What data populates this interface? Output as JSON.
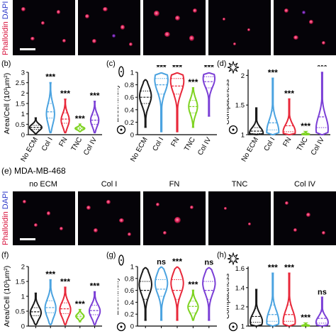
{
  "staining": {
    "phalloidin": "Phalloidin",
    "dapi": "DAPI"
  },
  "colors": {
    "no_ecm": "#1a1a1a",
    "col_i": "#4ba3e0",
    "fn": "#e8283a",
    "tnc": "#7ed321",
    "col_iv": "#7b3fd6",
    "phalloidin": "#d8123c",
    "dapi": "#2a36c8"
  },
  "section_e": {
    "tag": "(e)",
    "cell_line": "MDA-MB-468",
    "conditions": [
      "no ECM",
      "Col I",
      "FN",
      "TNC",
      "Col IV"
    ]
  },
  "panels": {
    "b": {
      "tag": "(b)"
    },
    "c": {
      "tag": "(c)"
    },
    "d": {
      "tag": "(d)"
    },
    "f": {
      "tag": "(f)"
    },
    "g": {
      "tag": "(g)"
    },
    "h": {
      "tag": "(h)"
    }
  },
  "chart_data": [
    {
      "id": "b",
      "type": "violin",
      "ylabel": "Area/Cell (10³μm²)",
      "categories": [
        "No ECM",
        "Col I",
        "FN",
        "TNC",
        "Col IV"
      ],
      "yticks": [
        0,
        0.5,
        1,
        1.5,
        2,
        2.5,
        3
      ],
      "ylim": [
        0,
        3
      ],
      "violins": [
        {
          "lo": 0.05,
          "hi": 0.8,
          "median": 0.35,
          "q1": 0.25,
          "q3": 0.45,
          "peak": 0.35,
          "width": 0.9
        },
        {
          "lo": 0.1,
          "hi": 2.5,
          "median": 1.1,
          "q1": 0.8,
          "q3": 1.5,
          "peak": 1.0,
          "width": 0.6
        },
        {
          "lo": 0.1,
          "hi": 1.7,
          "median": 0.75,
          "q1": 0.55,
          "q3": 1.05,
          "peak": 0.7,
          "width": 0.6
        },
        {
          "lo": 0.15,
          "hi": 0.5,
          "median": 0.3,
          "q1": 0.25,
          "q3": 0.35,
          "peak": 0.3,
          "width": 0.7
        },
        {
          "lo": 0.1,
          "hi": 1.6,
          "median": 0.7,
          "q1": 0.5,
          "q3": 0.95,
          "peak": 0.7,
          "width": 0.6
        }
      ],
      "significance": [
        "",
        "***",
        "***",
        "***",
        "***"
      ]
    },
    {
      "id": "c",
      "type": "violin",
      "ylabel": "Eccentricity",
      "categories": [
        "No ECM",
        "Col I",
        "FN",
        "TNC",
        "Col IV"
      ],
      "yticks": [
        0.0,
        0.2,
        0.4,
        0.6,
        0.8,
        1.0
      ],
      "ylim": [
        0,
        1.0
      ],
      "violins": [
        {
          "lo": 0.12,
          "hi": 0.88,
          "median": 0.6,
          "q1": 0.5,
          "q3": 0.7,
          "peak": 0.62,
          "width": 0.8
        },
        {
          "lo": 0.05,
          "hi": 0.99,
          "median": 0.8,
          "q1": 0.65,
          "q3": 0.9,
          "peak": 0.88,
          "width": 0.9
        },
        {
          "lo": 0.05,
          "hi": 0.99,
          "median": 0.78,
          "q1": 0.65,
          "q3": 0.9,
          "peak": 0.86,
          "width": 0.9
        },
        {
          "lo": 0.12,
          "hi": 0.75,
          "median": 0.45,
          "q1": 0.35,
          "q3": 0.55,
          "peak": 0.45,
          "width": 0.6
        },
        {
          "lo": 0.3,
          "hi": 0.99,
          "median": 0.85,
          "q1": 0.75,
          "q3": 0.93,
          "peak": 0.9,
          "width": 0.8
        }
      ],
      "significance": [
        "",
        "***",
        "***",
        "***",
        "***"
      ]
    },
    {
      "id": "d",
      "type": "violin",
      "ylabel": "Compactness",
      "categories": [
        "No ECM",
        "Col I",
        "FN",
        "TNC",
        "Col IV"
      ],
      "yticks": [
        1,
        1.5,
        2
      ],
      "ylim": [
        1,
        2.1
      ],
      "violins": [
        {
          "lo": 1.0,
          "hi": 1.45,
          "median": 1.06,
          "q1": 1.02,
          "q3": 1.12,
          "peak": 1.03,
          "width": 0.9
        },
        {
          "lo": 1.0,
          "hi": 1.95,
          "median": 1.2,
          "q1": 1.08,
          "q3": 1.4,
          "peak": 1.05,
          "width": 0.8
        },
        {
          "lo": 1.0,
          "hi": 1.6,
          "median": 1.15,
          "q1": 1.05,
          "q3": 1.28,
          "peak": 1.05,
          "width": 0.8
        },
        {
          "lo": 1.0,
          "hi": 1.05,
          "median": 1.01,
          "q1": 1.0,
          "q3": 1.02,
          "peak": 1.01,
          "width": 0.5
        },
        {
          "lo": 1.0,
          "hi": 2.05,
          "median": 1.3,
          "q1": 1.12,
          "q3": 1.55,
          "peak": 1.1,
          "width": 0.8
        }
      ],
      "significance": [
        "",
        "***",
        "***",
        "***",
        "***"
      ]
    },
    {
      "id": "f",
      "type": "violin",
      "ylabel": "Area/Cell (10³μm²)",
      "categories": [
        "No ECM",
        "Col I",
        "FN",
        "TNC",
        "Col IV"
      ],
      "yticks": [
        0.0,
        0.5,
        1.0,
        1.5,
        2.0
      ],
      "ylim": [
        0,
        2.0
      ],
      "violins": [
        {
          "lo": 0.05,
          "hi": 1.1,
          "median": 0.48,
          "q1": 0.35,
          "q3": 0.62,
          "peak": 0.45,
          "width": 0.8
        },
        {
          "lo": 0.05,
          "hi": 1.55,
          "median": 0.62,
          "q1": 0.45,
          "q3": 0.85,
          "peak": 0.6,
          "width": 0.8
        },
        {
          "lo": 0.05,
          "hi": 1.3,
          "median": 0.58,
          "q1": 0.42,
          "q3": 0.78,
          "peak": 0.55,
          "width": 0.8
        },
        {
          "lo": 0.15,
          "hi": 0.55,
          "median": 0.33,
          "q1": 0.27,
          "q3": 0.4,
          "peak": 0.33,
          "width": 0.6
        },
        {
          "lo": 0.05,
          "hi": 1.15,
          "median": 0.52,
          "q1": 0.38,
          "q3": 0.7,
          "peak": 0.5,
          "width": 0.8
        }
      ],
      "significance": [
        "",
        "***",
        "***",
        "***",
        "***"
      ]
    },
    {
      "id": "g",
      "type": "violin",
      "ylabel": "Eccentricity",
      "categories": [
        "No ECM",
        "Col I",
        "FN",
        "TNC",
        "Col IV"
      ],
      "yticks": [
        0.0,
        0.2,
        0.4,
        0.6,
        0.8,
        1.0
      ],
      "ylim": [
        0,
        1.0
      ],
      "violins": [
        {
          "lo": 0.1,
          "hi": 0.98,
          "median": 0.6,
          "q1": 0.45,
          "q3": 0.75,
          "peak": 0.7,
          "width": 0.85
        },
        {
          "lo": 0.1,
          "hi": 0.99,
          "median": 0.62,
          "q1": 0.5,
          "q3": 0.78,
          "peak": 0.72,
          "width": 0.85
        },
        {
          "lo": 0.1,
          "hi": 0.99,
          "median": 0.6,
          "q1": 0.45,
          "q3": 0.78,
          "peak": 0.72,
          "width": 0.85
        },
        {
          "lo": 0.1,
          "hi": 0.6,
          "median": 0.33,
          "q1": 0.22,
          "q3": 0.42,
          "peak": 0.32,
          "width": 0.7
        },
        {
          "lo": 0.1,
          "hi": 0.98,
          "median": 0.6,
          "q1": 0.45,
          "q3": 0.75,
          "peak": 0.72,
          "width": 0.85
        }
      ],
      "significance": [
        "",
        "ns",
        "***",
        "***",
        "ns"
      ]
    },
    {
      "id": "h",
      "type": "violin",
      "ylabel": "Compactness",
      "categories": [
        "No ECM",
        "Col I",
        "FN",
        "TNC",
        "Col IV"
      ],
      "yticks": [
        1.0,
        1.2,
        1.4,
        1.6
      ],
      "ylim": [
        1.0,
        1.62
      ],
      "violins": [
        {
          "lo": 1.0,
          "hi": 1.38,
          "median": 1.1,
          "q1": 1.04,
          "q3": 1.18,
          "peak": 1.05,
          "width": 0.8
        },
        {
          "lo": 1.0,
          "hi": 1.55,
          "median": 1.12,
          "q1": 1.05,
          "q3": 1.22,
          "peak": 1.05,
          "width": 0.8
        },
        {
          "lo": 1.0,
          "hi": 1.55,
          "median": 1.12,
          "q1": 1.05,
          "q3": 1.22,
          "peak": 1.05,
          "width": 0.8
        },
        {
          "lo": 1.0,
          "hi": 1.03,
          "median": 1.005,
          "q1": 1.0,
          "q3": 1.01,
          "peak": 1.005,
          "width": 0.5
        },
        {
          "lo": 1.0,
          "hi": 1.3,
          "median": 1.08,
          "q1": 1.03,
          "q3": 1.15,
          "peak": 1.04,
          "width": 0.8
        }
      ],
      "significance": [
        "",
        "***",
        "***",
        "***",
        "ns"
      ]
    }
  ]
}
